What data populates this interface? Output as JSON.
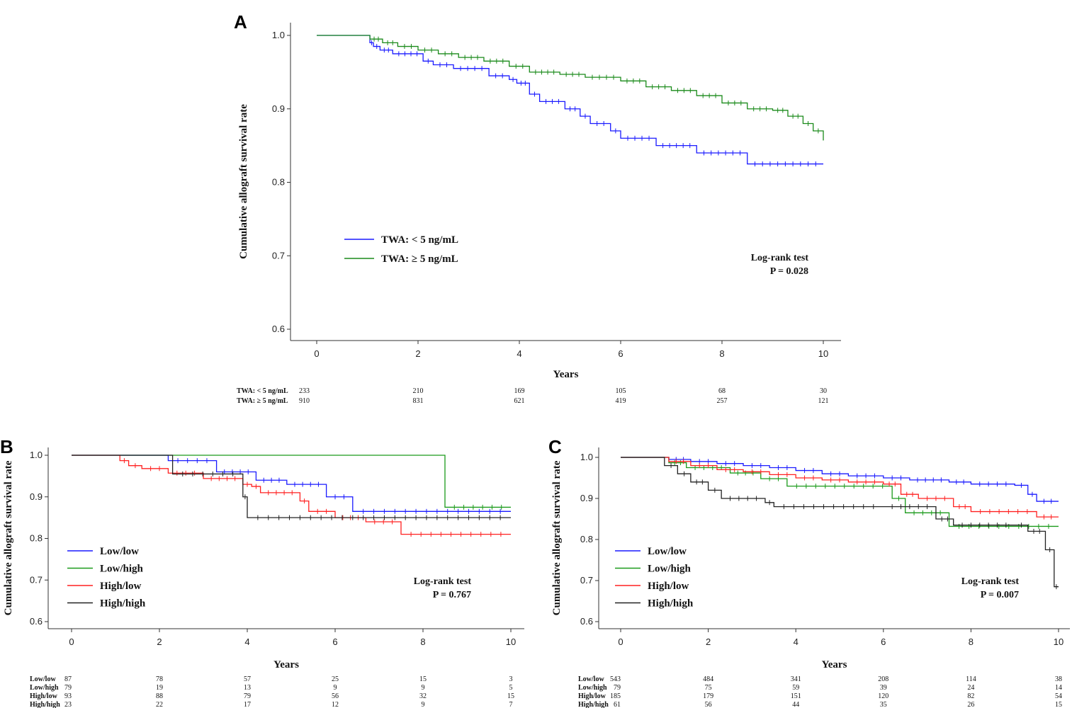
{
  "chart_data": [
    {
      "panel": "A",
      "type": "line",
      "subtype": "kaplan-meier",
      "xlabel": "Years",
      "ylabel": "Cumulative allograft survival rate",
      "xlim": [
        0,
        10
      ],
      "ylim": [
        0.6,
        1.0
      ],
      "xticks": [
        "0",
        "2",
        "4",
        "6",
        "8",
        "10"
      ],
      "yticks": [
        "0.6",
        "0.7",
        "0.8",
        "0.9",
        "1.0"
      ],
      "legend_position": "center-left",
      "stat_title": "Log-rank test",
      "stat_p": "P = 0.028",
      "series": [
        {
          "name": "TWA: < 5 ng/mL",
          "color": "#1a1aff",
          "x": [
            0,
            1.05,
            1.12,
            1.25,
            1.5,
            2.1,
            2.3,
            2.7,
            3.4,
            3.8,
            3.95,
            4.2,
            4.4,
            4.9,
            5.2,
            5.4,
            5.8,
            6.0,
            6.7,
            7.5,
            8.5,
            10
          ],
          "y": [
            1.0,
            0.99,
            0.985,
            0.98,
            0.975,
            0.965,
            0.96,
            0.955,
            0.945,
            0.94,
            0.935,
            0.92,
            0.91,
            0.9,
            0.89,
            0.88,
            0.87,
            0.86,
            0.85,
            0.84,
            0.825,
            0.825
          ]
        },
        {
          "name": "TWA: ≥ 5 ng/mL",
          "color": "#1a8a1a",
          "x": [
            0,
            1.05,
            1.3,
            1.6,
            2.0,
            2.4,
            2.8,
            3.3,
            3.8,
            4.2,
            4.8,
            5.3,
            6.0,
            6.5,
            7.0,
            7.5,
            8.0,
            8.5,
            9.0,
            9.3,
            9.6,
            9.8,
            10
          ],
          "y": [
            1.0,
            0.995,
            0.99,
            0.985,
            0.98,
            0.975,
            0.97,
            0.965,
            0.958,
            0.95,
            0.947,
            0.943,
            0.938,
            0.93,
            0.925,
            0.918,
            0.908,
            0.9,
            0.898,
            0.89,
            0.88,
            0.87,
            0.857
          ]
        }
      ],
      "risk_table": {
        "times": [
          0,
          2,
          4,
          6,
          8,
          10
        ],
        "rows": [
          {
            "label": "TWA: < 5 ng/mL",
            "values": [
              "233",
              "210",
              "169",
              "105",
              "68",
              "30"
            ]
          },
          {
            "label": "TWA: ≥ 5 ng/mL",
            "values": [
              "910",
              "831",
              "621",
              "419",
              "257",
              "121"
            ]
          }
        ]
      }
    },
    {
      "panel": "B",
      "type": "line",
      "subtype": "kaplan-meier",
      "xlabel": "Years",
      "ylabel": "Cumulative allograft survival rate",
      "xlim": [
        0,
        10
      ],
      "ylim": [
        0.6,
        1.0
      ],
      "xticks": [
        "0",
        "2",
        "4",
        "6",
        "8",
        "10"
      ],
      "yticks": [
        "0.6",
        "0.7",
        "0.8",
        "0.9",
        "1.0"
      ],
      "legend_position": "bottom-left",
      "stat_title": "Log-rank test",
      "stat_p": "P = 0.767",
      "series": [
        {
          "name": "Low/low",
          "color": "#1a1aff",
          "x": [
            0,
            2.2,
            3.3,
            4.2,
            4.9,
            5.8,
            6.4,
            10
          ],
          "y": [
            1.0,
            0.987,
            0.96,
            0.94,
            0.93,
            0.9,
            0.865,
            0.865
          ]
        },
        {
          "name": "Low/high",
          "color": "#1a9a1a",
          "x": [
            0,
            8.5,
            10
          ],
          "y": [
            1.0,
            0.875,
            0.875
          ]
        },
        {
          "name": "High/low",
          "color": "#ff2020",
          "x": [
            0,
            1.1,
            1.3,
            1.6,
            2.2,
            3.0,
            3.9,
            4.1,
            4.3,
            5.2,
            5.4,
            6.0,
            6.7,
            7.5,
            10
          ],
          "y": [
            1.0,
            0.987,
            0.975,
            0.968,
            0.957,
            0.944,
            0.93,
            0.925,
            0.91,
            0.89,
            0.865,
            0.85,
            0.84,
            0.81,
            0.81
          ]
        },
        {
          "name": "High/high",
          "color": "#222222",
          "x": [
            0,
            2.3,
            3.9,
            4.0,
            10
          ],
          "y": [
            1.0,
            0.955,
            0.9,
            0.85,
            0.85
          ]
        }
      ],
      "risk_table": {
        "times": [
          0,
          2,
          4,
          6,
          8,
          10
        ],
        "rows": [
          {
            "label": "Low/low",
            "values": [
              "87",
              "78",
              "57",
              "25",
              "15",
              "3"
            ]
          },
          {
            "label": "Low/high",
            "values": [
              "79",
              "19",
              "13",
              "9",
              "9",
              "5"
            ]
          },
          {
            "label": "High/low",
            "values": [
              "93",
              "88",
              "79",
              "56",
              "32",
              "15"
            ]
          },
          {
            "label": "High/high",
            "values": [
              "23",
              "22",
              "17",
              "12",
              "9",
              "7"
            ]
          }
        ]
      }
    },
    {
      "panel": "C",
      "type": "line",
      "subtype": "kaplan-meier",
      "xlabel": "Years",
      "ylabel": "Cumulative allograft survival rate",
      "xlim": [
        0,
        10
      ],
      "ylim": [
        0.6,
        1.0
      ],
      "xticks": [
        "0",
        "2",
        "4",
        "6",
        "8",
        "10"
      ],
      "yticks": [
        "0.6",
        "0.7",
        "0.8",
        "0.9",
        "1.0"
      ],
      "legend_position": "bottom-left",
      "stat_title": "Log-rank test",
      "stat_p": "P = 0.007",
      "series": [
        {
          "name": "Low/low",
          "color": "#1a1aff",
          "x": [
            0,
            1.1,
            1.6,
            2.2,
            2.8,
            3.4,
            4.0,
            4.6,
            5.2,
            6.0,
            6.6,
            7.5,
            8.0,
            9.0,
            9.3,
            9.5,
            10
          ],
          "y": [
            1.0,
            0.995,
            0.99,
            0.985,
            0.98,
            0.975,
            0.968,
            0.96,
            0.955,
            0.95,
            0.945,
            0.94,
            0.935,
            0.932,
            0.91,
            0.893,
            0.893
          ]
        },
        {
          "name": "Low/high",
          "color": "#1a9a1a",
          "x": [
            0,
            1.1,
            1.5,
            2.5,
            3.2,
            3.8,
            6.2,
            6.5,
            7.5,
            10
          ],
          "y": [
            1.0,
            0.987,
            0.975,
            0.962,
            0.948,
            0.93,
            0.9,
            0.865,
            0.832,
            0.832
          ]
        },
        {
          "name": "High/low",
          "color": "#ff2020",
          "x": [
            0,
            1.1,
            1.6,
            2.2,
            2.8,
            3.4,
            4.0,
            4.6,
            5.2,
            6.0,
            6.4,
            6.8,
            7.6,
            8.0,
            9.5,
            10
          ],
          "y": [
            1.0,
            0.99,
            0.98,
            0.97,
            0.965,
            0.958,
            0.95,
            0.945,
            0.94,
            0.935,
            0.91,
            0.9,
            0.88,
            0.868,
            0.855,
            0.855
          ]
        },
        {
          "name": "High/high",
          "color": "#222222",
          "x": [
            0,
            1.0,
            1.3,
            1.6,
            2.0,
            2.3,
            3.3,
            3.5,
            6.0,
            7.2,
            7.6,
            9.0,
            9.3,
            9.7,
            9.9,
            10
          ],
          "y": [
            1.0,
            0.98,
            0.96,
            0.94,
            0.92,
            0.9,
            0.89,
            0.88,
            0.88,
            0.85,
            0.835,
            0.835,
            0.82,
            0.775,
            0.685,
            0.685
          ]
        }
      ],
      "risk_table": {
        "times": [
          0,
          2,
          4,
          6,
          8,
          10
        ],
        "rows": [
          {
            "label": "Low/low",
            "values": [
              "543",
              "484",
              "341",
              "208",
              "114",
              "38"
            ]
          },
          {
            "label": "Low/high",
            "values": [
              "79",
              "75",
              "59",
              "39",
              "24",
              "14"
            ]
          },
          {
            "label": "High/low",
            "values": [
              "185",
              "179",
              "151",
              "120",
              "82",
              "54"
            ]
          },
          {
            "label": "High/high",
            "values": [
              "61",
              "56",
              "44",
              "35",
              "26",
              "15"
            ]
          }
        ]
      }
    }
  ]
}
